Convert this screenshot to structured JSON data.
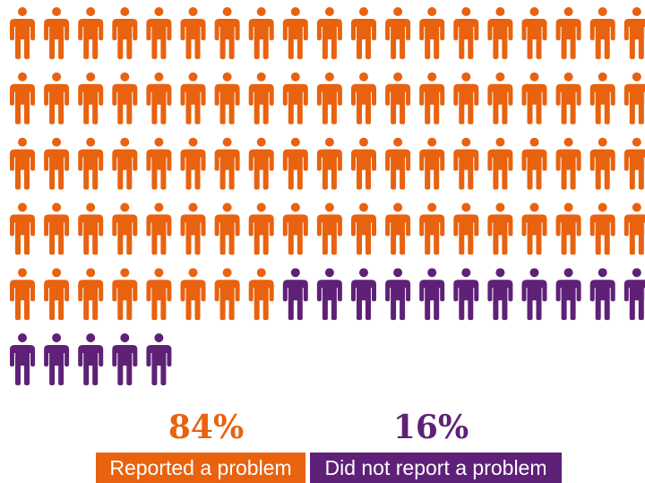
{
  "colors": {
    "reported": "#e8620f",
    "not_reported": "#5f2177"
  },
  "chart_data": {
    "type": "pictogram",
    "total_icons": 100,
    "icon": "person-icon",
    "series": [
      {
        "name": "Reported a problem",
        "value": 84,
        "unit": "%",
        "color": "#e8620f"
      },
      {
        "name": "Did not report a problem",
        "value": 16,
        "unit": "%",
        "color": "#5f2177"
      }
    ]
  },
  "labels": {
    "reported_pct": "84%",
    "not_reported_pct": "16%",
    "reported_legend": "Reported a problem",
    "not_reported_legend": "Did not report a problem"
  }
}
